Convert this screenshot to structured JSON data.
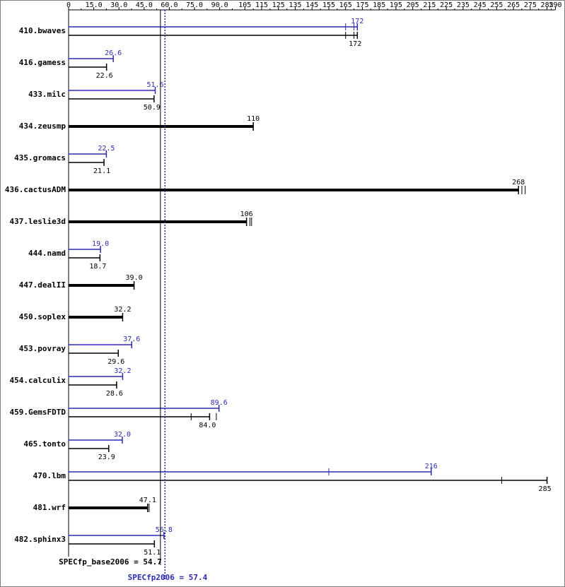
{
  "chart_data": {
    "type": "bar",
    "orientation": "horizontal",
    "x_ticks": [
      "0",
      "15.0",
      "30.0",
      "45.0",
      "60.0",
      "75.0",
      "90.0",
      "105",
      "115",
      "125",
      "135",
      "145",
      "155",
      "165",
      "175",
      "185",
      "195",
      "205",
      "215",
      "225",
      "235",
      "245",
      "255",
      "265",
      "275",
      "285",
      "290"
    ],
    "x_tick_values": [
      0,
      15,
      30,
      45,
      60,
      75,
      90,
      105,
      115,
      125,
      135,
      145,
      155,
      165,
      175,
      185,
      195,
      205,
      215,
      225,
      235,
      245,
      255,
      265,
      275,
      285,
      290
    ],
    "xlim": [
      0,
      290
    ],
    "series": [
      {
        "name": "peak",
        "color": "#2b2bb3"
      },
      {
        "name": "base",
        "color": "#000000"
      }
    ],
    "benchmarks": [
      {
        "name": "410.bwaves",
        "peak": 172,
        "peak_label": "172",
        "base": 172,
        "base_label": "172",
        "runs": [
          165,
          170
        ]
      },
      {
        "name": "416.gamess",
        "peak": 26.6,
        "peak_label": "26.6",
        "base": 22.6,
        "base_label": "22.6"
      },
      {
        "name": "433.milc",
        "peak": 51.6,
        "peak_label": "51.6",
        "base": 50.9,
        "base_label": "50.9"
      },
      {
        "name": "434.zeusmp",
        "peak": null,
        "peak_label": "",
        "base": 110,
        "base_label": "110",
        "bold": true
      },
      {
        "name": "435.gromacs",
        "peak": 22.5,
        "peak_label": "22.5",
        "base": 21.1,
        "base_label": "21.1"
      },
      {
        "name": "436.cactusADM",
        "peak": null,
        "peak_label": "",
        "base": 268,
        "base_label": "268",
        "bold": true,
        "runs": [
          270,
          272
        ]
      },
      {
        "name": "437.leslie3d",
        "peak": null,
        "peak_label": "",
        "base": 106,
        "base_label": "106",
        "bold": true,
        "runs": [
          108,
          109
        ]
      },
      {
        "name": "444.namd",
        "peak": 19.0,
        "peak_label": "19.0",
        "base": 18.7,
        "base_label": "18.7"
      },
      {
        "name": "447.dealII",
        "peak": null,
        "peak_label": "",
        "base": 39.0,
        "base_label": "39.0",
        "bold": true
      },
      {
        "name": "450.soplex",
        "peak": null,
        "peak_label": "",
        "base": 32.2,
        "base_label": "32.2",
        "bold": true
      },
      {
        "name": "453.povray",
        "peak": 37.6,
        "peak_label": "37.6",
        "base": 29.6,
        "base_label": "29.6"
      },
      {
        "name": "454.calculix",
        "peak": 32.2,
        "peak_label": "32.2",
        "base": 28.6,
        "base_label": "28.6"
      },
      {
        "name": "459.GemsFDTD",
        "peak": 89.6,
        "peak_label": "89.6",
        "base": 84.0,
        "base_label": "84.0",
        "base_runs": [
          73,
          88
        ]
      },
      {
        "name": "465.tonto",
        "peak": 32.0,
        "peak_label": "32.0",
        "base": 23.9,
        "base_label": "23.9"
      },
      {
        "name": "470.lbm",
        "peak": 216,
        "peak_label": "216",
        "base": 285,
        "base_label": "285",
        "peak_runs": [
          155
        ],
        "base_runs": [
          258
        ]
      },
      {
        "name": "481.wrf",
        "peak": null,
        "peak_label": "",
        "base": 47.1,
        "base_label": "47.1",
        "bold": true,
        "runs": [
          48
        ]
      },
      {
        "name": "482.sphinx3",
        "peak": 56.8,
        "peak_label": "56.8",
        "base": 51.1,
        "base_label": "51.1"
      }
    ],
    "summary": {
      "base_label": "SPECfp_base2006 = 54.7",
      "base_value": 54.7,
      "peak_label": "SPECfp2006 = 57.4",
      "peak_value": 57.4
    }
  }
}
